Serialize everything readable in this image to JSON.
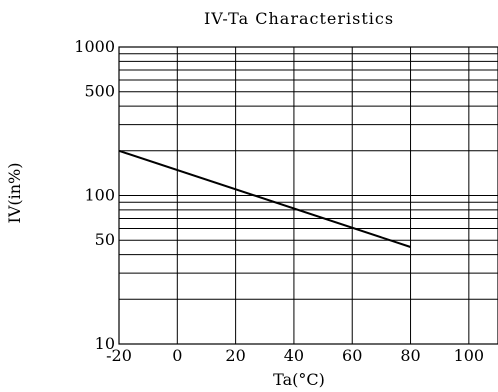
{
  "chart_data": {
    "type": "line",
    "title": "IV-Ta Characteristics",
    "xlabel": "Ta(°C)",
    "ylabel": "IV(in%)",
    "x_scale": "linear",
    "y_scale": "log",
    "xlim": [
      -20,
      110
    ],
    "ylim": [
      10,
      1000
    ],
    "x_ticks": [
      -20,
      0,
      20,
      40,
      60,
      80,
      100
    ],
    "x_tick_labels": [
      "-20",
      "0",
      "20",
      "40",
      "60",
      "80",
      "100"
    ],
    "y_tick_labels": [
      {
        "value": 1000,
        "label": "1000"
      },
      {
        "value": 500,
        "label": "500"
      },
      {
        "value": 100,
        "label": "100"
      },
      {
        "value": 50,
        "label": "50"
      },
      {
        "value": 10,
        "label": "10"
      }
    ],
    "x_gridlines": [
      -20,
      0,
      20,
      40,
      60,
      80,
      100
    ],
    "y_gridlines": [
      10,
      20,
      30,
      40,
      50,
      60,
      70,
      80,
      90,
      100,
      200,
      300,
      400,
      500,
      600,
      700,
      800,
      900,
      1000
    ],
    "grid": true,
    "series": [
      {
        "x": [
          -20,
          80
        ],
        "y": [
          200,
          45
        ]
      }
    ],
    "colors": {
      "line": "#000000",
      "grid": "#000000",
      "background": "#ffffff"
    }
  }
}
